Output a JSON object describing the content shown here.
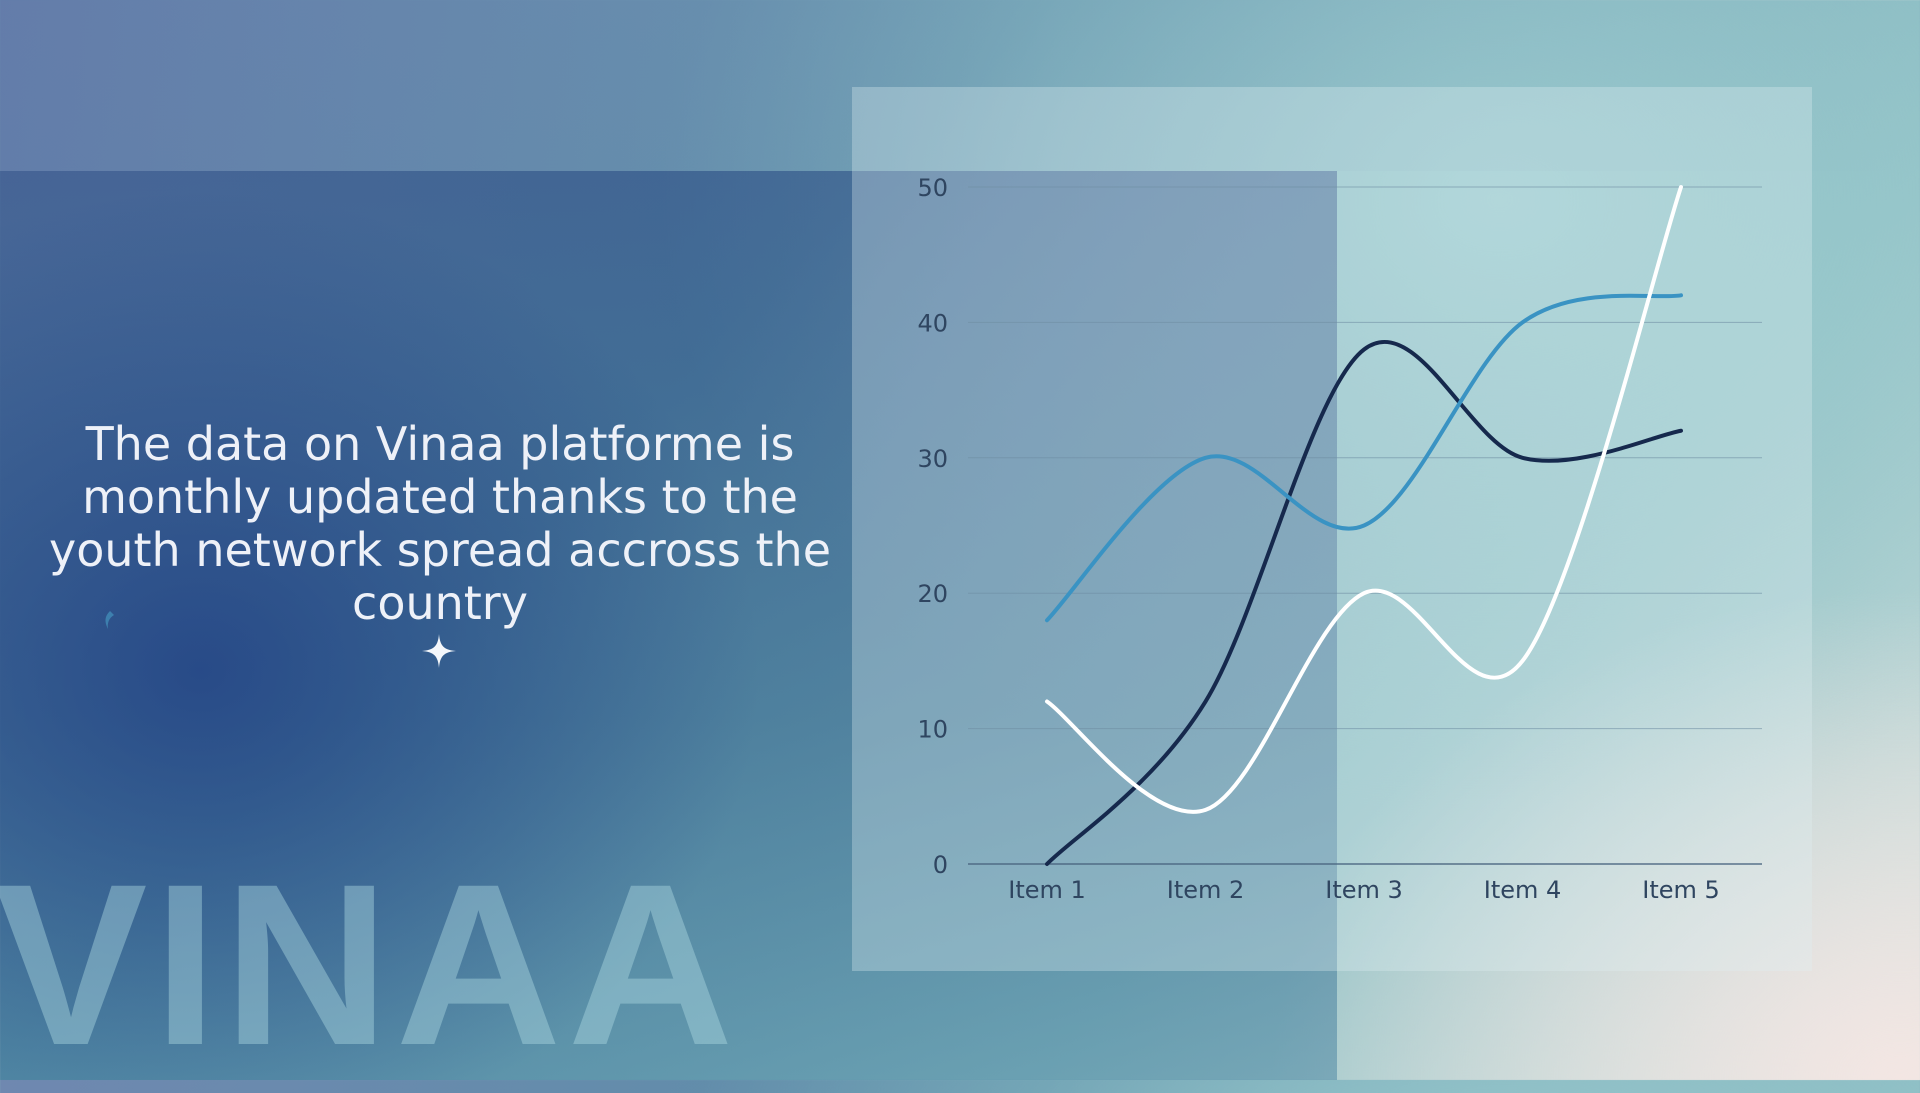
{
  "caption": "The data on Vinaa platforme is monthly updated thanks to the youth network spread accross the country",
  "watermark": "VINAA",
  "colors": {
    "dark_navy": "#16294d",
    "steel_blue": "#3a93c3",
    "white": "#ffffff",
    "text_light": "#eef1f8",
    "axis_text": "#2f4560"
  },
  "chart_data": {
    "type": "line",
    "categories": [
      "Item 1",
      "Item 2",
      "Item 3",
      "Item 4",
      "Item 5"
    ],
    "ylim": [
      0,
      50
    ],
    "yticks": [
      0,
      10,
      20,
      30,
      40,
      50
    ],
    "grid": true,
    "smooth": true,
    "series": [
      {
        "color": "#16294d",
        "values": [
          0,
          12,
          38,
          30,
          32
        ]
      },
      {
        "color": "#3a93c3",
        "values": [
          18,
          30,
          25,
          40,
          42
        ]
      },
      {
        "color": "#ffffff",
        "values": [
          12,
          4,
          20,
          15,
          50
        ]
      }
    ]
  }
}
